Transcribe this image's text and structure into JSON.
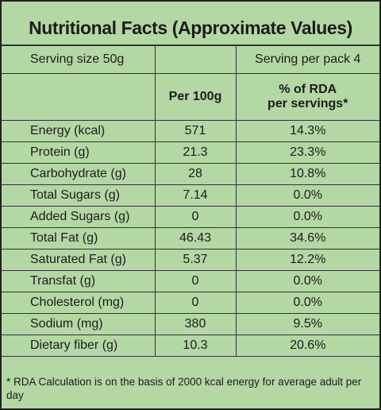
{
  "header": {
    "title": "Nutritional Facts (Approximate Values)"
  },
  "table": {
    "serving_size": "Serving size 50g",
    "serving_per_pack": "Serving per pack 4",
    "column_1": "Per 100g",
    "column_2": [
      "% of RDA",
      "per servings*"
    ],
    "rows": [
      [
        "Energy (kcal)",
        "571",
        "14.3%"
      ],
      [
        "Protein (g)",
        "21.3",
        "23.3%"
      ],
      [
        "Carbohydrate (g)",
        "28",
        "10.8%"
      ],
      [
        "Total Sugars (g)",
        "7.14",
        "0.0%"
      ],
      [
        "Added Sugars (g)",
        "0",
        "0.0%"
      ],
      [
        "Total Fat (g)",
        "46.43",
        "34.6%"
      ],
      [
        "Saturated Fat (g)",
        "5.37",
        "12.2%"
      ],
      [
        "Transfat (g)",
        "0",
        "0.0%"
      ],
      [
        "Cholesterol (mg)",
        "0",
        "0.0%"
      ],
      [
        "Sodium (mg)",
        "380",
        "9.5%"
      ],
      [
        "Dietary fiber (g)",
        "10.3",
        "20.6%"
      ]
    ]
  },
  "footnote": "* RDA Calculation is on the basis of 2000 kcal energy for average adult per day"
}
